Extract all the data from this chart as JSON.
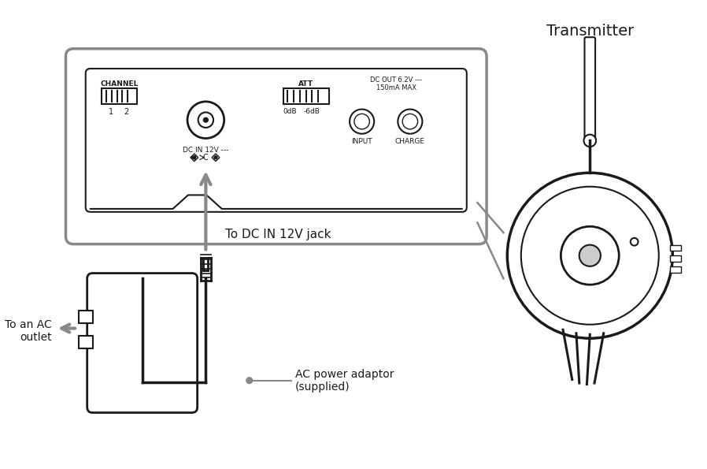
{
  "bg_color": "#ffffff",
  "line_color": "#1a1a1a",
  "gray_color": "#888888",
  "light_gray": "#cccccc",
  "labels": {
    "transmitter": "Transmitter",
    "to_dc": "To DC IN 12V jack",
    "to_ac": "To an AC\noutlet",
    "ac_adaptor": "AC power adaptor\n(supplied)",
    "channel": "CHANNEL",
    "att": "ATT",
    "dc_out": "DC OUT 6.2V ---\n150mA MAX",
    "dc_in": "DC IN 12V ---",
    "odb": "0dB",
    "neg6db": "-6dB",
    "input": "INPUT",
    "charge": "CHARGE",
    "num1": "1",
    "num2": "2"
  },
  "figsize": [
    8.98,
    5.95
  ],
  "dpi": 100
}
